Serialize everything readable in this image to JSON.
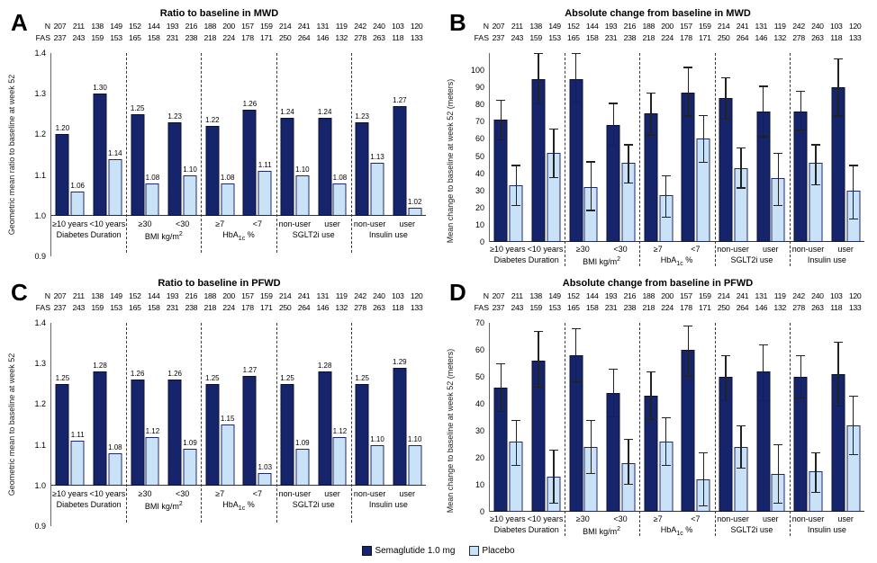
{
  "colors": {
    "semaglutide": "#16246b",
    "semaglutide_border": "#0a1233",
    "placebo": "#c9e2f8",
    "placebo_border": "#1c2a66",
    "error_bar": "#222222"
  },
  "legend": {
    "items": [
      {
        "label": "Semaglutide 1.0 mg",
        "color": "#16246b",
        "border": "#0a1233"
      },
      {
        "label": "Placebo",
        "color": "#c9e2f8",
        "border": "#1c2a66"
      }
    ]
  },
  "header": {
    "n_label": "N",
    "fas_label": "FAS",
    "n": [
      207,
      211,
      138,
      149,
      152,
      144,
      193,
      216,
      188,
      200,
      157,
      159,
      214,
      241,
      131,
      119,
      242,
      240,
      103,
      120
    ],
    "fas": [
      237,
      243,
      159,
      153,
      165,
      158,
      231,
      238,
      218,
      224,
      178,
      171,
      250,
      264,
      146,
      132,
      278,
      263,
      118,
      133
    ]
  },
  "categories": [
    {
      "label_html": "Diabetes Duration",
      "subs": [
        "≥10 years",
        "<10 years"
      ]
    },
    {
      "label_html": "BMI kg/m<sup>2</sup>",
      "subs": [
        "≥30",
        "<30"
      ]
    },
    {
      "label_html": "HbA<sub>1c</sub> %",
      "subs": [
        "≥7",
        "<7"
      ]
    },
    {
      "label_html": "SGLT2i use",
      "subs": [
        "non-user",
        "user"
      ]
    },
    {
      "label_html": "Insulin use",
      "subs": [
        "non-user",
        "user"
      ]
    }
  ],
  "chart_data": [
    {
      "panel": "A",
      "type": "bar",
      "title": "Ratio to baseline in MWD",
      "ylabel": "Geometric mean ratio to baseline at week 52",
      "ylim": [
        0.9,
        1.4
      ],
      "baseline": 1.0,
      "yticks": [
        0.9,
        1.0,
        1.1,
        1.2,
        1.3,
        1.4
      ],
      "tick_decimals": 1,
      "value_labels": true,
      "value_decimals": 2,
      "error_bars": false,
      "series": [
        {
          "name": "Semaglutide 1.0 mg",
          "values": [
            1.2,
            1.3,
            1.25,
            1.23,
            1.22,
            1.26,
            1.24,
            1.24,
            1.23,
            1.27
          ]
        },
        {
          "name": "Placebo",
          "values": [
            1.06,
            1.14,
            1.08,
            1.1,
            1.08,
            1.11,
            1.1,
            1.08,
            1.13,
            1.02
          ]
        }
      ]
    },
    {
      "panel": "B",
      "type": "bar",
      "title": "Absolute change from baseline in MWD",
      "ylabel": "Mean change to baseline at week 52 (meters)",
      "ylim": [
        0,
        110
      ],
      "baseline": 0,
      "yticks": [
        0,
        10,
        20,
        30,
        40,
        50,
        60,
        70,
        80,
        90,
        100
      ],
      "tick_decimals": 0,
      "value_labels": false,
      "error_bars": true,
      "series": [
        {
          "name": "Semaglutide 1.0 mg",
          "values": [
            71,
            95,
            95,
            68,
            75,
            87,
            84,
            76,
            76,
            90
          ],
          "errors": [
            [
              59,
              83
            ],
            [
              80,
              110
            ],
            [
              81,
              110
            ],
            [
              56,
              81
            ],
            [
              62,
              87
            ],
            [
              73,
              102
            ],
            [
              71,
              96
            ],
            [
              61,
              91
            ],
            [
              65,
              88
            ],
            [
              73,
              107
            ]
          ]
        },
        {
          "name": "Placebo",
          "values": [
            33,
            52,
            32,
            46,
            27,
            60,
            43,
            37,
            46,
            30
          ],
          "errors": [
            [
              21,
              45
            ],
            [
              37,
              66
            ],
            [
              18,
              47
            ],
            [
              34,
              57
            ],
            [
              14,
              39
            ],
            [
              46,
              74
            ],
            [
              31,
              55
            ],
            [
              21,
              52
            ],
            [
              33,
              57
            ],
            [
              13,
              45
            ]
          ]
        }
      ]
    },
    {
      "panel": "C",
      "type": "bar",
      "title": "Ratio to baseline in PFWD",
      "ylabel": "Geometric mean to baseline at week 52",
      "ylim": [
        0.9,
        1.4
      ],
      "baseline": 1.0,
      "yticks": [
        0.9,
        1.0,
        1.1,
        1.2,
        1.3,
        1.4
      ],
      "tick_decimals": 1,
      "value_labels": true,
      "value_decimals": 2,
      "error_bars": false,
      "series": [
        {
          "name": "Semaglutide 1.0 mg",
          "values": [
            1.25,
            1.28,
            1.26,
            1.26,
            1.25,
            1.27,
            1.25,
            1.28,
            1.25,
            1.29
          ]
        },
        {
          "name": "Placebo",
          "values": [
            1.11,
            1.08,
            1.12,
            1.09,
            1.15,
            1.03,
            1.09,
            1.12,
            1.1,
            1.1
          ]
        }
      ]
    },
    {
      "panel": "D",
      "type": "bar",
      "title": "Absolute change from baseline in PFWD",
      "ylabel": "Mean change to baseline at week 52 (meters)",
      "ylim": [
        0,
        70
      ],
      "baseline": 0,
      "yticks": [
        0,
        10,
        20,
        30,
        40,
        50,
        60,
        70
      ],
      "tick_decimals": 0,
      "value_labels": false,
      "error_bars": true,
      "series": [
        {
          "name": "Semaglutide 1.0 mg",
          "values": [
            46,
            56,
            58,
            44,
            43,
            60,
            50,
            52,
            50,
            51
          ],
          "errors": [
            [
              37,
              55
            ],
            [
              46,
              67
            ],
            [
              48,
              68
            ],
            [
              35,
              53
            ],
            [
              34,
              52
            ],
            [
              50,
              69
            ],
            [
              41,
              58
            ],
            [
              41,
              62
            ],
            [
              42,
              58
            ],
            [
              39,
              63
            ]
          ]
        },
        {
          "name": "Placebo",
          "values": [
            26,
            13,
            24,
            18,
            26,
            12,
            24,
            14,
            15,
            32
          ],
          "errors": [
            [
              17,
              34
            ],
            [
              3,
              23
            ],
            [
              14,
              34
            ],
            [
              10,
              27
            ],
            [
              17,
              35
            ],
            [
              2,
              22
            ],
            [
              16,
              32
            ],
            [
              3,
              25
            ],
            [
              7,
              22
            ],
            [
              21,
              43
            ]
          ]
        }
      ]
    }
  ]
}
